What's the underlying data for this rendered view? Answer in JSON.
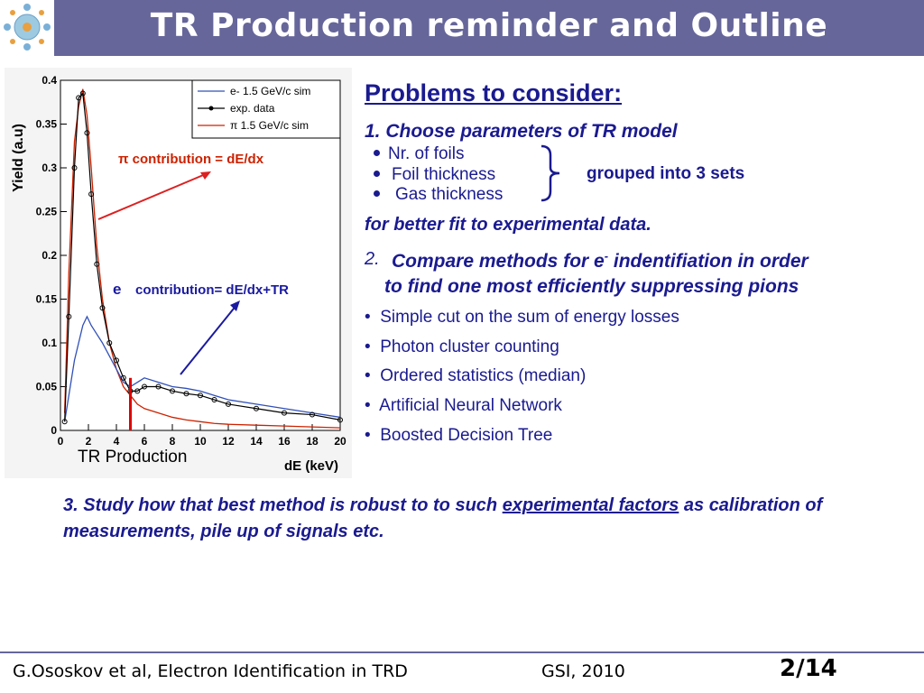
{
  "slide": {
    "title": "TR Production reminder and Outline",
    "problems_heading": "Problems to consider:",
    "item1": "1. Choose parameters of TR model",
    "item1_sub": [
      "Nr. of foils",
      "Foil thickness",
      "Gas thickness"
    ],
    "grouped": "grouped into 3 sets",
    "better_fit": "for better fit to experimental data.",
    "item2_num": "2.",
    "item2_text": "Compare methods for e",
    "item2_sup": "-",
    "item2_text_end": " indentifiation in order",
    "item2_cont": "to find one most efficiently suppressing pions",
    "methods": [
      "Simple cut on the sum of energy losses",
      "Photon cluster counting",
      "Ordered statistics (median)",
      "Artificial Neural Network",
      "Boosted Decision Tree"
    ],
    "item3_a": "3. Study how that best method is robust to to such ",
    "item3_link": "experimental factors",
    "item3_b": " as calibration of measurements, pile up of signals etc.",
    "tr_production": "TR Production",
    "footer_left": "G.Ososkov et al, Electron Identification in TRD",
    "footer_mid": "GSI, 2010",
    "footer_page": "2/14"
  },
  "colors": {
    "title_bar": "#66669a",
    "text_blue": "#1a1a90",
    "pi_red": "#cc2200",
    "e_blue": "#1a1aa0"
  },
  "chart_data": {
    "type": "line",
    "ylabel": "Yield (a.u)",
    "xlabel": "dE (keV)",
    "xlim": [
      0,
      20
    ],
    "ylim": [
      0,
      0.4
    ],
    "x_ticks": [
      "0",
      "2",
      "4",
      "6",
      "8",
      "10",
      "12",
      "14",
      "16",
      "18",
      "20"
    ],
    "y_ticks": [
      "0",
      "0.05",
      "0.1",
      "0.15",
      "0.2",
      "0.25",
      "0.3",
      "0.35",
      "0.4"
    ],
    "legend": [
      "e- 1.5 GeV/c sim",
      "exp. data",
      "π 1.5 GeV/c sim"
    ],
    "legend_e_sup": "-",
    "annotation_pi": "π contribution = dE/dx",
    "annotation_e": "contribution= dE/dx+TR",
    "annotation_e_symbol": "e",
    "x": [
      0.3,
      0.6,
      1.0,
      1.3,
      1.6,
      1.9,
      2.2,
      2.6,
      3.0,
      3.5,
      4.0,
      4.5,
      5.0,
      5.5,
      6.0,
      7.0,
      8.0,
      9.0,
      10.0,
      11.0,
      12.0,
      14.0,
      16.0,
      18.0,
      20.0
    ],
    "series": [
      {
        "name": "π 1.5 GeV/c sim",
        "values": [
          0.02,
          0.18,
          0.33,
          0.37,
          0.39,
          0.36,
          0.3,
          0.21,
          0.15,
          0.1,
          0.07,
          0.05,
          0.04,
          0.03,
          0.025,
          0.02,
          0.015,
          0.012,
          0.01,
          0.008,
          0.007,
          0.006,
          0.005,
          0.004,
          0.003
        ]
      },
      {
        "name": "e- 1.5 GeV/c sim",
        "values": [
          0.01,
          0.04,
          0.08,
          0.1,
          0.12,
          0.13,
          0.12,
          0.11,
          0.1,
          0.085,
          0.07,
          0.055,
          0.05,
          0.055,
          0.06,
          0.055,
          0.05,
          0.048,
          0.045,
          0.04,
          0.035,
          0.03,
          0.025,
          0.02,
          0.015
        ]
      },
      {
        "name": "exp. data",
        "values": [
          0.01,
          0.13,
          0.3,
          0.38,
          0.385,
          0.34,
          0.27,
          0.19,
          0.14,
          0.1,
          0.08,
          0.06,
          0.045,
          0.045,
          0.05,
          0.05,
          0.045,
          0.042,
          0.04,
          0.035,
          0.03,
          0.025,
          0.02,
          0.018,
          0.012
        ]
      }
    ],
    "cut_line_x": 5
  }
}
